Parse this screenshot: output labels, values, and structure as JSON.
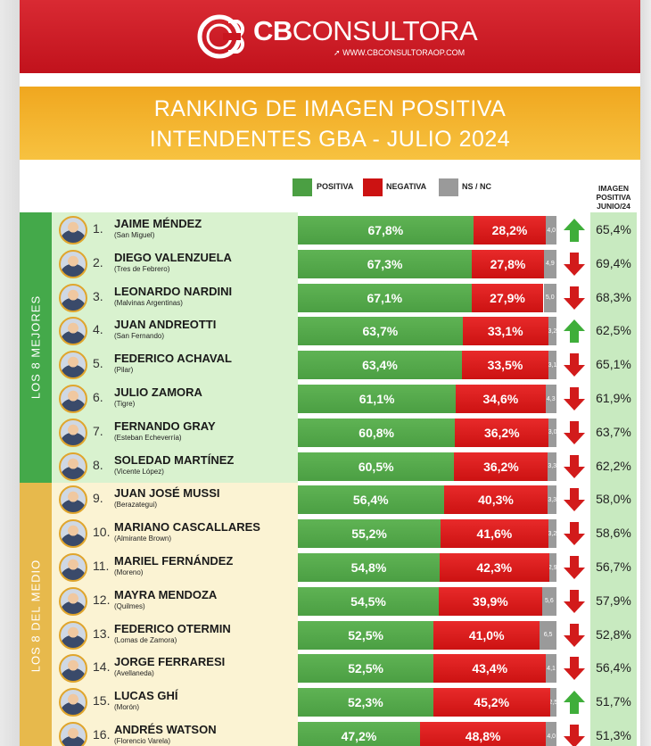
{
  "brand": {
    "name_bold": "CB",
    "name_rest": "CONSULTORA",
    "url": "WWW.CBCONSULTORAOP.COM"
  },
  "title": {
    "line1": "RANKING DE IMAGEN POSITIVA",
    "line2": "INTENDENTES GBA - JULIO 2024"
  },
  "legend": {
    "positive": "POSITIVA",
    "negative": "NEGATIVA",
    "nsnc": "NS / NC"
  },
  "prev_header": {
    "l1": "IMAGEN",
    "l2": "POSITIVA",
    "l3": "JUNIO/24"
  },
  "groups": {
    "top": "LOS 8 MEJORES",
    "middle": "LOS 8 DEL MEDIO"
  },
  "colors": {
    "positive": "#4b9f43",
    "negative": "#cc1212",
    "nsnc": "#9a9a9a",
    "up": "#3fae3a",
    "down": "#d21b1b"
  },
  "chart_data": {
    "type": "bar",
    "stacked": true,
    "orientation": "horizontal",
    "title": "RANKING DE IMAGEN POSITIVA INTENDENTES GBA - JULIO 2024",
    "rows": [
      {
        "rank": "1.",
        "name": "JAIME MÉNDEZ",
        "municipio": "(San Miguel)",
        "pos": 67.8,
        "pos_label": "67,8%",
        "neg": 28.2,
        "neg_label": "28,2%",
        "ns": 4.0,
        "ns_label": "4,0",
        "trend": "up",
        "prev": "65,4%"
      },
      {
        "rank": "2.",
        "name": "DIEGO VALENZUELA",
        "municipio": "(Tres de Febrero)",
        "pos": 67.3,
        "pos_label": "67,3%",
        "neg": 27.8,
        "neg_label": "27,8%",
        "ns": 4.9,
        "ns_label": "4,9",
        "trend": "down",
        "prev": "69,4%"
      },
      {
        "rank": "3.",
        "name": "LEONARDO NARDINI",
        "municipio": "(Malvinas Argentinas)",
        "pos": 67.1,
        "pos_label": "67,1%",
        "neg": 27.9,
        "neg_label": "27,9%",
        "ns": 5.0,
        "ns_label": "5,0",
        "trend": "down",
        "prev": "68,3%"
      },
      {
        "rank": "4.",
        "name": "JUAN ANDREOTTI",
        "municipio": "(San Fernando)",
        "pos": 63.7,
        "pos_label": "63,7%",
        "neg": 33.1,
        "neg_label": "33,1%",
        "ns": 3.2,
        "ns_label": "3,2",
        "trend": "up",
        "prev": "62,5%"
      },
      {
        "rank": "5.",
        "name": "FEDERICO ACHAVAL",
        "municipio": "(Pilar)",
        "pos": 63.4,
        "pos_label": "63,4%",
        "neg": 33.5,
        "neg_label": "33,5%",
        "ns": 3.1,
        "ns_label": "3,1",
        "trend": "down",
        "prev": "65,1%"
      },
      {
        "rank": "6.",
        "name": "JULIO ZAMORA",
        "municipio": "(Tigre)",
        "pos": 61.1,
        "pos_label": "61,1%",
        "neg": 34.6,
        "neg_label": "34,6%",
        "ns": 4.3,
        "ns_label": "4,3",
        "trend": "down",
        "prev": "61,9%"
      },
      {
        "rank": "7.",
        "name": "FERNANDO GRAY",
        "municipio": "(Esteban Echeverría)",
        "pos": 60.8,
        "pos_label": "60,8%",
        "neg": 36.2,
        "neg_label": "36,2%",
        "ns": 3.0,
        "ns_label": "3,0",
        "trend": "down",
        "prev": "63,7%"
      },
      {
        "rank": "8.",
        "name": "SOLEDAD MARTÍNEZ",
        "municipio": "(Vicente López)",
        "pos": 60.5,
        "pos_label": "60,5%",
        "neg": 36.2,
        "neg_label": "36,2%",
        "ns": 3.3,
        "ns_label": "3,3",
        "trend": "down",
        "prev": "62,2%"
      },
      {
        "rank": "9.",
        "name": "JUAN JOSÉ MUSSI",
        "municipio": "(Berazategui)",
        "pos": 56.4,
        "pos_label": "56,4%",
        "neg": 40.3,
        "neg_label": "40,3%",
        "ns": 3.3,
        "ns_label": "3,3",
        "trend": "down",
        "prev": "58,0%"
      },
      {
        "rank": "10.",
        "name": "MARIANO CASCALLARES",
        "municipio": "(Almirante Brown)",
        "pos": 55.2,
        "pos_label": "55,2%",
        "neg": 41.6,
        "neg_label": "41,6%",
        "ns": 3.2,
        "ns_label": "3,2",
        "trend": "down",
        "prev": "58,6%"
      },
      {
        "rank": "11.",
        "name": "MARIEL FERNÁNDEZ",
        "municipio": "(Moreno)",
        "pos": 54.8,
        "pos_label": "54,8%",
        "neg": 42.3,
        "neg_label": "42,3%",
        "ns": 2.9,
        "ns_label": "2,9",
        "trend": "down",
        "prev": "56,7%"
      },
      {
        "rank": "12.",
        "name": "MAYRA MENDOZA",
        "municipio": "(Quilmes)",
        "pos": 54.5,
        "pos_label": "54,5%",
        "neg": 39.9,
        "neg_label": "39,9%",
        "ns": 5.6,
        "ns_label": "5,6",
        "trend": "down",
        "prev": "57,9%"
      },
      {
        "rank": "13.",
        "name": "FEDERICO OTERMIN",
        "municipio": "(Lomas de Zamora)",
        "pos": 52.5,
        "pos_label": "52,5%",
        "neg": 41.0,
        "neg_label": "41,0%",
        "ns": 6.5,
        "ns_label": "6,5",
        "trend": "down",
        "prev": "52,8%"
      },
      {
        "rank": "14.",
        "name": "JORGE FERRARESI",
        "municipio": "(Avellaneda)",
        "pos": 52.5,
        "pos_label": "52,5%",
        "neg": 43.4,
        "neg_label": "43,4%",
        "ns": 4.1,
        "ns_label": "4,1",
        "trend": "down",
        "prev": "56,4%"
      },
      {
        "rank": "15.",
        "name": "LUCAS GHÍ",
        "municipio": "(Morón)",
        "pos": 52.3,
        "pos_label": "52,3%",
        "neg": 45.2,
        "neg_label": "45,2%",
        "ns": 2.5,
        "ns_label": "2,5",
        "trend": "up",
        "prev": "51,7%"
      },
      {
        "rank": "16.",
        "name": "ANDRÉS WATSON",
        "municipio": "(Florencio Varela)",
        "pos": 47.2,
        "pos_label": "47,2%",
        "neg": 48.8,
        "neg_label": "48,8%",
        "ns": 4.0,
        "ns_label": "4,0",
        "trend": "down",
        "prev": "51,3%"
      }
    ]
  }
}
